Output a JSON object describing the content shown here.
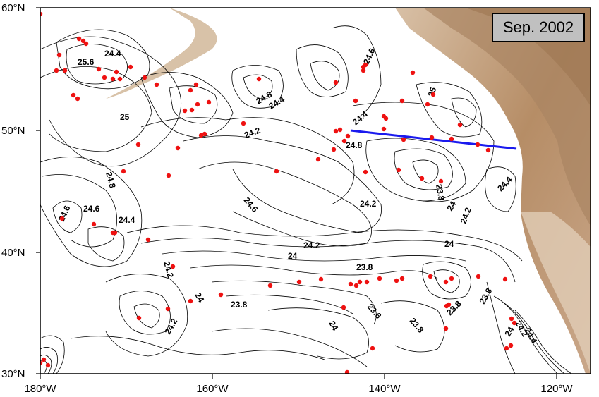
{
  "map": {
    "title": "Sep. 2002",
    "lat_labels": [
      "60°N",
      "50°N",
      "40°N",
      "30°N"
    ],
    "lon_labels": [
      "180°W",
      "160°W",
      "140°W",
      "120°W"
    ],
    "contour_labels": [
      "25.6",
      "24.4",
      "25",
      "24.8",
      "24.6",
      "24.8",
      "24.4",
      "24.2",
      "24.4",
      "24.6",
      "24.8",
      "25",
      "24.6",
      "24.6",
      "24.4",
      "24.2",
      "24",
      "24.2",
      "24.4",
      "24",
      "24.2",
      "24.2",
      "23.8",
      "24",
      "24.2",
      "23.8",
      "24",
      "23.8",
      "23.6",
      "23.8",
      "24",
      "23.8",
      "23.8",
      "24",
      "24.4",
      "24.2"
    ],
    "colors": {
      "land": "#c9a787",
      "land_dark": "#a67d58",
      "contour": "#000000",
      "stations": "#ee1111",
      "transect": "#1a1aee"
    }
  }
}
